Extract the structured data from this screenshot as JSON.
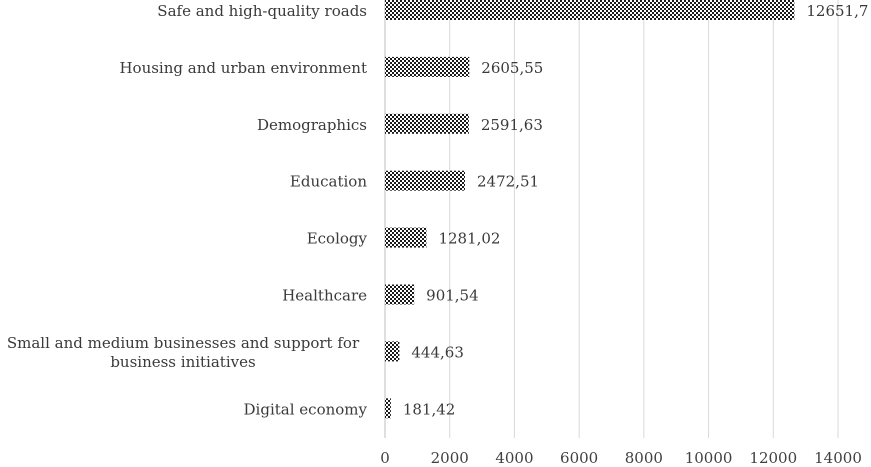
{
  "chart_data": {
    "type": "bar",
    "orientation": "horizontal",
    "categories": [
      "Safe and high-quality roads",
      "Housing and urban environment",
      "Demographics",
      "Education",
      "Ecology",
      "Healthcare",
      "Small and medium businesses and support for business initiatives",
      "Digital economy"
    ],
    "category_lines": [
      [
        "Safe and high-quality roads"
      ],
      [
        "Housing and urban environment"
      ],
      [
        "Demographics"
      ],
      [
        "Education"
      ],
      [
        "Ecology"
      ],
      [
        "Healthcare"
      ],
      [
        "Small and medium businesses and support for",
        "business initiatives"
      ],
      [
        "Digital economy"
      ]
    ],
    "values": [
      12651.7,
      2605.55,
      2591.63,
      2472.51,
      1281.02,
      901.54,
      444.63,
      181.42
    ],
    "value_labels": [
      "12651,7",
      "2605,55",
      "2591,63",
      "2472,51",
      "1281,02",
      "901,54",
      "444,63",
      "181,42"
    ],
    "xlim": [
      0,
      14000
    ],
    "xticks": [
      0,
      2000,
      4000,
      6000,
      8000,
      10000,
      12000,
      14000
    ],
    "xtick_labels": [
      "0",
      "2000",
      "4000",
      "6000",
      "8000",
      "10000",
      "12000",
      "14000"
    ],
    "title": "",
    "xlabel": "",
    "ylabel": "",
    "grid": "vertical",
    "legend": "none",
    "bar_fill": "checkered-dark",
    "colors": {
      "bar_dark": "#1a1a1a",
      "bar_light": "#ffffff",
      "grid": "#d9d9d9",
      "axis": "#bfbfbf",
      "text": "#3a3a3a"
    }
  }
}
